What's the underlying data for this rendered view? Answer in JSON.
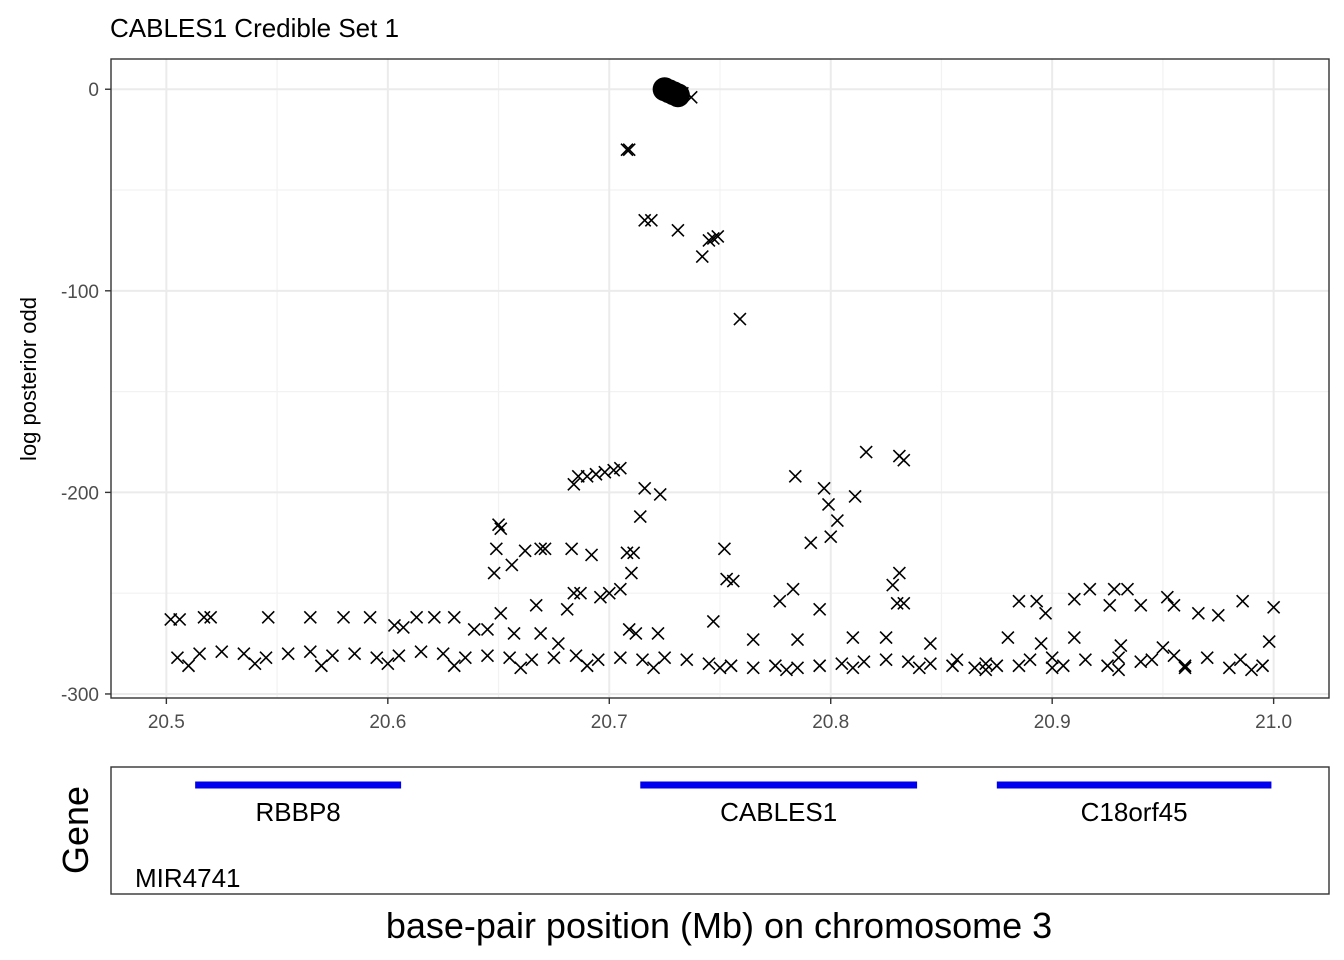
{
  "chart_data": {
    "type": "scatter",
    "title": "CABLES1 Credible Set 1",
    "xlabel": "base-pair position (Mb) on chromosome 3",
    "ylabel": "log posterior odd",
    "xlim": [
      20.475,
      21.025
    ],
    "ylim": [
      -302,
      15
    ],
    "x_ticks": [
      20.5,
      20.6,
      20.7,
      20.8,
      20.9,
      21.0
    ],
    "x_tick_labels": [
      "20.5",
      "20.6",
      "20.7",
      "20.8",
      "20.9",
      "21.0"
    ],
    "y_ticks": [
      0,
      -100,
      -200,
      -300
    ],
    "y_tick_labels": [
      "0",
      "-100",
      "-200",
      "-300"
    ],
    "grid": true,
    "credible_set_points": [
      {
        "x": 20.725,
        "y": 0
      },
      {
        "x": 20.727,
        "y": -1
      },
      {
        "x": 20.729,
        "y": -2
      },
      {
        "x": 20.731,
        "y": -3
      }
    ],
    "background_points": [
      [
        20.708,
        -30
      ],
      [
        20.709,
        -30
      ],
      [
        20.716,
        -65
      ],
      [
        20.719,
        -65
      ],
      [
        20.731,
        -70
      ],
      [
        20.742,
        -83
      ],
      [
        20.745,
        -75
      ],
      [
        20.747,
        -74
      ],
      [
        20.749,
        -73
      ],
      [
        20.759,
        -114
      ],
      [
        20.733,
        -2
      ],
      [
        20.737,
        -4
      ],
      [
        20.816,
        -180
      ],
      [
        20.831,
        -182
      ],
      [
        20.833,
        -184
      ],
      [
        20.784,
        -192
      ],
      [
        20.797,
        -198
      ],
      [
        20.799,
        -206
      ],
      [
        20.803,
        -214
      ],
      [
        20.811,
        -202
      ],
      [
        20.791,
        -225
      ],
      [
        20.8,
        -222
      ],
      [
        20.684,
        -196
      ],
      [
        20.686,
        -192
      ],
      [
        20.69,
        -192
      ],
      [
        20.694,
        -191
      ],
      [
        20.698,
        -190
      ],
      [
        20.702,
        -189
      ],
      [
        20.705,
        -188
      ],
      [
        20.716,
        -198
      ],
      [
        20.723,
        -201
      ],
      [
        20.714,
        -212
      ],
      [
        20.708,
        -230
      ],
      [
        20.711,
        -230
      ],
      [
        20.71,
        -240
      ],
      [
        20.648,
        -240
      ],
      [
        20.649,
        -228
      ],
      [
        20.651,
        -218
      ],
      [
        20.65,
        -216
      ],
      [
        20.651,
        -260
      ],
      [
        20.656,
        -236
      ],
      [
        20.669,
        -228
      ],
      [
        20.671,
        -228
      ],
      [
        20.662,
        -229
      ],
      [
        20.683,
        -228
      ],
      [
        20.692,
        -231
      ],
      [
        20.684,
        -250
      ],
      [
        20.687,
        -250
      ],
      [
        20.696,
        -252
      ],
      [
        20.7,
        -250
      ],
      [
        20.705,
        -248
      ],
      [
        20.752,
        -228
      ],
      [
        20.753,
        -243
      ],
      [
        20.756,
        -244
      ],
      [
        20.777,
        -254
      ],
      [
        20.783,
        -248
      ],
      [
        20.795,
        -258
      ],
      [
        20.831,
        -240
      ],
      [
        20.828,
        -246
      ],
      [
        20.83,
        -255
      ],
      [
        20.833,
        -255
      ],
      [
        20.747,
        -264
      ],
      [
        20.667,
        -256
      ],
      [
        20.681,
        -258
      ],
      [
        20.709,
        -268
      ],
      [
        20.712,
        -270
      ],
      [
        20.722,
        -270
      ],
      [
        20.639,
        -268
      ],
      [
        20.645,
        -268
      ],
      [
        20.657,
        -270
      ],
      [
        20.677,
        -275
      ],
      [
        20.669,
        -270
      ],
      [
        20.546,
        -262
      ],
      [
        20.565,
        -262
      ],
      [
        20.58,
        -262
      ],
      [
        20.592,
        -262
      ],
      [
        20.603,
        -266
      ],
      [
        20.607,
        -267
      ],
      [
        20.613,
        -262
      ],
      [
        20.621,
        -262
      ],
      [
        20.63,
        -262
      ],
      [
        20.885,
        -254
      ],
      [
        20.893,
        -254
      ],
      [
        20.897,
        -260
      ],
      [
        20.91,
        -253
      ],
      [
        20.917,
        -248
      ],
      [
        20.928,
        -248
      ],
      [
        20.934,
        -248
      ],
      [
        20.926,
        -256
      ],
      [
        20.94,
        -256
      ],
      [
        20.952,
        -252
      ],
      [
        20.955,
        -256
      ],
      [
        20.966,
        -260
      ],
      [
        20.975,
        -261
      ],
      [
        20.986,
        -254
      ],
      [
        21.0,
        -257
      ],
      [
        20.998,
        -274
      ],
      [
        20.502,
        -263
      ],
      [
        20.506,
        -263
      ],
      [
        20.517,
        -262
      ],
      [
        20.52,
        -262
      ],
      [
        20.88,
        -272
      ],
      [
        20.895,
        -275
      ],
      [
        20.91,
        -272
      ],
      [
        20.931,
        -276
      ],
      [
        20.95,
        -277
      ],
      [
        20.765,
        -273
      ],
      [
        20.785,
        -273
      ],
      [
        20.81,
        -272
      ],
      [
        20.825,
        -272
      ],
      [
        20.845,
        -275
      ],
      [
        20.857,
        -283
      ],
      [
        20.87,
        -285
      ],
      [
        20.885,
        -286
      ],
      [
        20.905,
        -286
      ],
      [
        20.925,
        -286
      ],
      [
        20.94,
        -284
      ],
      [
        20.96,
        -286
      ],
      [
        20.98,
        -287
      ],
      [
        20.995,
        -286
      ],
      [
        20.505,
        -282
      ],
      [
        20.515,
        -280
      ],
      [
        20.525,
        -279
      ],
      [
        20.535,
        -280
      ],
      [
        20.545,
        -282
      ],
      [
        20.555,
        -280
      ],
      [
        20.565,
        -279
      ],
      [
        20.575,
        -281
      ],
      [
        20.585,
        -280
      ],
      [
        20.595,
        -282
      ],
      [
        20.605,
        -281
      ],
      [
        20.615,
        -279
      ],
      [
        20.625,
        -280
      ],
      [
        20.635,
        -282
      ],
      [
        20.645,
        -281
      ],
      [
        20.655,
        -282
      ],
      [
        20.665,
        -283
      ],
      [
        20.675,
        -282
      ],
      [
        20.685,
        -281
      ],
      [
        20.695,
        -283
      ],
      [
        20.705,
        -282
      ],
      [
        20.715,
        -283
      ],
      [
        20.725,
        -282
      ],
      [
        20.735,
        -283
      ],
      [
        20.745,
        -285
      ],
      [
        20.755,
        -286
      ],
      [
        20.765,
        -287
      ],
      [
        20.775,
        -286
      ],
      [
        20.785,
        -287
      ],
      [
        20.795,
        -286
      ],
      [
        20.805,
        -285
      ],
      [
        20.815,
        -284
      ],
      [
        20.825,
        -283
      ],
      [
        20.835,
        -284
      ],
      [
        20.845,
        -285
      ],
      [
        20.855,
        -286
      ],
      [
        20.865,
        -287
      ],
      [
        20.875,
        -286
      ],
      [
        20.89,
        -283
      ],
      [
        20.9,
        -282
      ],
      [
        20.915,
        -283
      ],
      [
        20.93,
        -282
      ],
      [
        20.945,
        -283
      ],
      [
        20.955,
        -281
      ],
      [
        20.97,
        -282
      ],
      [
        20.985,
        -283
      ],
      [
        20.51,
        -286
      ],
      [
        20.54,
        -285
      ],
      [
        20.57,
        -286
      ],
      [
        20.6,
        -285
      ],
      [
        20.63,
        -286
      ],
      [
        20.66,
        -287
      ],
      [
        20.69,
        -286
      ],
      [
        20.72,
        -287
      ],
      [
        20.75,
        -287
      ],
      [
        20.78,
        -288
      ],
      [
        20.81,
        -287
      ],
      [
        20.84,
        -287
      ],
      [
        20.87,
        -288
      ],
      [
        20.9,
        -287
      ],
      [
        20.93,
        -288
      ],
      [
        20.96,
        -287
      ],
      [
        20.99,
        -288
      ]
    ],
    "genes": [
      {
        "name": "RBBP8",
        "start": 20.513,
        "end": 20.606,
        "color": "#0000ee",
        "labeled": true
      },
      {
        "name": "CABLES1",
        "start": 20.714,
        "end": 20.839,
        "color": "#0000ee",
        "labeled": true
      },
      {
        "name": "C18orf45",
        "start": 20.875,
        "end": 20.999,
        "color": "#0000ee",
        "labeled": true
      },
      {
        "name": "MIR4741",
        "start": 20.5,
        "end": 20.5,
        "color": "#0000ee",
        "labeled": true
      }
    ],
    "gene_panel_label": "Gene"
  }
}
